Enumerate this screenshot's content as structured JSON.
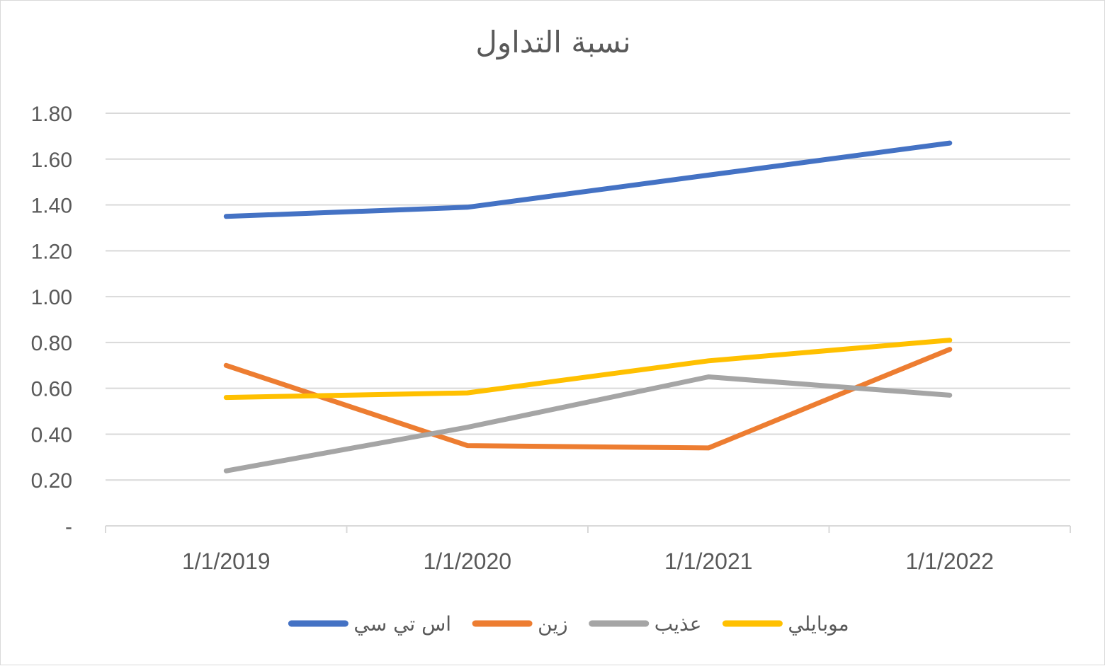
{
  "chart_data": {
    "type": "line",
    "title": "نسبة التداول",
    "xlabel": "",
    "ylabel": "",
    "categories": [
      "1/1/2019",
      "1/1/2020",
      "1/1/2021",
      "1/1/2022"
    ],
    "ylim": [
      0,
      1.8
    ],
    "y_ticks": [
      "-",
      "0.20",
      "0.40",
      "0.60",
      "0.80",
      "1.00",
      "1.20",
      "1.40",
      "1.60",
      "1.80"
    ],
    "grid": true,
    "legend_position": "bottom",
    "series": [
      {
        "name": "اس تي سي",
        "color": "#4472C4",
        "values": [
          1.35,
          1.39,
          1.53,
          1.67
        ]
      },
      {
        "name": "زين",
        "color": "#ED7D31",
        "values": [
          0.7,
          0.35,
          0.34,
          0.77
        ]
      },
      {
        "name": "عذيب",
        "color": "#A5A5A5",
        "values": [
          0.24,
          0.43,
          0.65,
          0.57
        ]
      },
      {
        "name": "موبايلي",
        "color": "#FFC000",
        "values": [
          0.56,
          0.58,
          0.72,
          0.81
        ]
      }
    ]
  }
}
